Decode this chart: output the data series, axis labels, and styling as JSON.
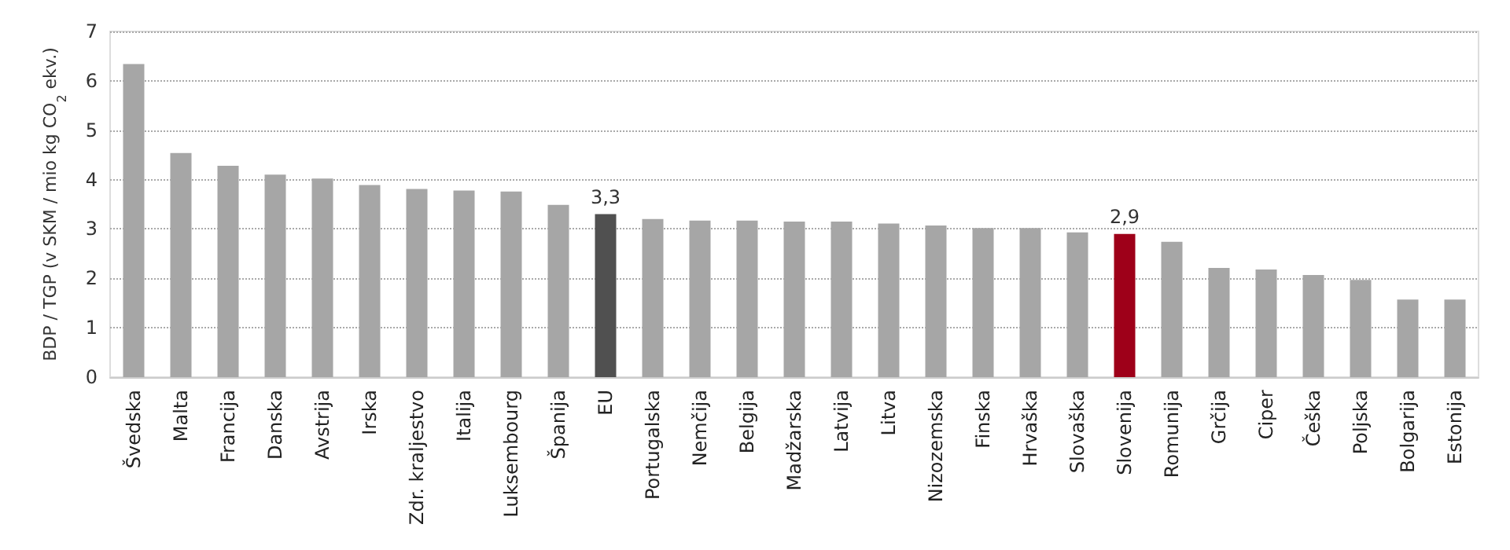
{
  "chart_data": {
    "type": "bar",
    "ylabel": "BDP / TGP (v SKM / mio kg CO$_{2}$ ekv.)",
    "categories": [
      "Švedska",
      "Malta",
      "Francija",
      "Danska",
      "Avstrija",
      "Irska",
      "Zdr. kraljestvo",
      "Italija",
      "Luksembourg",
      "Španija",
      "EU",
      "Portugalska",
      "Nemčija",
      "Belgija",
      "Madžarska",
      "Latvija",
      "Litva",
      "Nizozemska",
      "Finska",
      "Hrvaška",
      "Slovaška",
      "Slovenija",
      "Romunija",
      "Grčija",
      "Ciper",
      "Češka",
      "Poljska",
      "Bolgarija",
      "Estonija"
    ],
    "values": [
      6.34,
      4.54,
      4.28,
      4.1,
      4.02,
      3.89,
      3.81,
      3.78,
      3.76,
      3.49,
      3.3,
      3.2,
      3.17,
      3.17,
      3.15,
      3.15,
      3.11,
      3.07,
      3.02,
      3.02,
      2.93,
      2.9,
      2.74,
      2.21,
      2.18,
      2.07,
      1.97,
      1.57,
      1.57
    ],
    "colors": [
      "#a6a6a6",
      "#a6a6a6",
      "#a6a6a6",
      "#a6a6a6",
      "#a6a6a6",
      "#a6a6a6",
      "#a6a6a6",
      "#a6a6a6",
      "#a6a6a6",
      "#a6a6a6",
      "#505050",
      "#a6a6a6",
      "#a6a6a6",
      "#a6a6a6",
      "#a6a6a6",
      "#a6a6a6",
      "#a6a6a6",
      "#a6a6a6",
      "#a6a6a6",
      "#a6a6a6",
      "#a6a6a6",
      "#9e0019",
      "#a6a6a6",
      "#a6a6a6",
      "#a6a6a6",
      "#a6a6a6",
      "#a6a6a6",
      "#a6a6a6",
      "#a6a6a6"
    ],
    "value_labels": [
      null,
      null,
      null,
      null,
      null,
      null,
      null,
      null,
      null,
      null,
      "3,3",
      null,
      null,
      null,
      null,
      null,
      null,
      null,
      null,
      null,
      null,
      "2,9",
      null,
      null,
      null,
      null,
      null,
      null,
      null
    ],
    "ylim": [
      0,
      7
    ],
    "yticks": [
      0,
      1,
      2,
      3,
      4,
      5,
      6,
      7
    ],
    "grid": "y"
  }
}
